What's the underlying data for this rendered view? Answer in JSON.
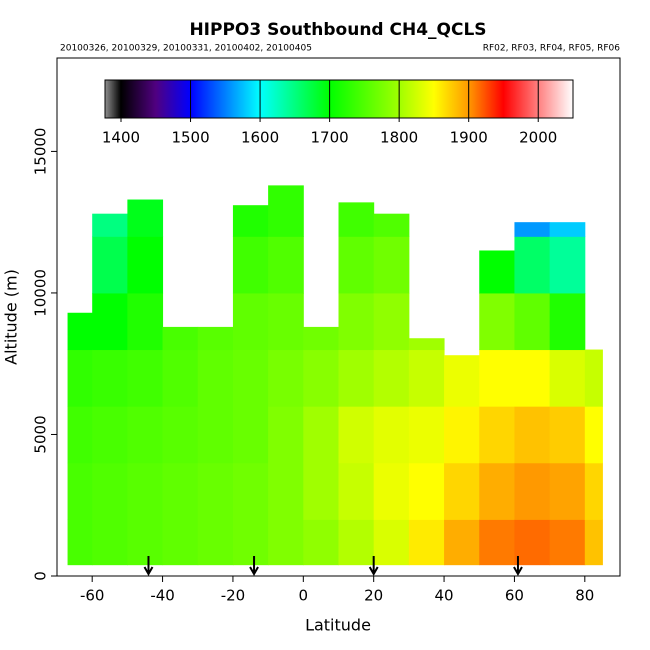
{
  "chart_data": {
    "type": "curtain",
    "title": "HIPPO3 Southbound CH4_QCLS",
    "subtitle_left": "20100326, 20100329, 20100331, 20100402, 20100405",
    "subtitle_right": "RF02, RF03, RF04, RF05, RF06",
    "xlabel": "Latitude",
    "ylabel": "Altitude (m)",
    "xlim": [
      -70,
      90
    ],
    "xticks": [
      -60,
      -40,
      -20,
      0,
      20,
      40,
      60,
      80
    ],
    "ylim": [
      0,
      18300
    ],
    "yticks": [
      0,
      5000,
      10000,
      15000
    ],
    "colorbar_lim": [
      1377,
      2050
    ],
    "colorbar_ticks": [
      1400,
      1500,
      1600,
      1700,
      1800,
      1900,
      2000
    ],
    "colorscale": [
      [
        1377,
        "#909090"
      ],
      [
        1400,
        "#000000"
      ],
      [
        1450,
        "#500080"
      ],
      [
        1500,
        "#0000ff"
      ],
      [
        1600,
        "#00ffff"
      ],
      [
        1700,
        "#00ff00"
      ],
      [
        1800,
        "#a0ff00"
      ],
      [
        1850,
        "#ffff00"
      ],
      [
        1900,
        "#ff9900"
      ],
      [
        1950,
        "#ff0000"
      ],
      [
        2050,
        "#ffffff"
      ]
    ],
    "arrows_lat": [
      -44,
      -14,
      20,
      61
    ],
    "layers": [
      400,
      2000,
      4000,
      6000,
      8000,
      10000,
      12000,
      14000
    ],
    "columns": [
      {
        "lat": [
          -67,
          -60
        ],
        "top": 9300,
        "values": [
          1745,
          1745,
          1740,
          1730,
          1700,
          null,
          null
        ]
      },
      {
        "lat": [
          -60,
          -50
        ],
        "top": 12800,
        "values": [
          1750,
          1750,
          1745,
          1735,
          1700,
          1670,
          1650
        ]
      },
      {
        "lat": [
          -50,
          -40
        ],
        "top": 13300,
        "values": [
          1755,
          1755,
          1750,
          1740,
          1720,
          1700,
          1690
        ]
      },
      {
        "lat": [
          -40,
          -30
        ],
        "top": 8800,
        "values": [
          1760,
          1760,
          1755,
          1750,
          1745,
          null,
          null
        ]
      },
      {
        "lat": [
          -30,
          -20
        ],
        "top": 8800,
        "values": [
          1765,
          1765,
          1760,
          1760,
          1755,
          null,
          null
        ]
      },
      {
        "lat": [
          -20,
          -10
        ],
        "top": 13100,
        "values": [
          1770,
          1770,
          1765,
          1765,
          1760,
          1740,
          1720
        ]
      },
      {
        "lat": [
          -10,
          0
        ],
        "top": 13800,
        "values": [
          1780,
          1780,
          1780,
          1775,
          1765,
          1750,
          1730
        ]
      },
      {
        "lat": [
          0,
          10
        ],
        "top": 8800,
        "values": [
          1790,
          1800,
          1800,
          1785,
          1770,
          null,
          null
        ]
      },
      {
        "lat": [
          10,
          20
        ],
        "top": 13200,
        "values": [
          1810,
          1820,
          1825,
          1800,
          1780,
          1760,
          1740
        ]
      },
      {
        "lat": [
          20,
          30
        ],
        "top": 12800,
        "values": [
          1830,
          1840,
          1835,
          1810,
          1790,
          1770,
          1750
        ]
      },
      {
        "lat": [
          30,
          40
        ],
        "top": 8400,
        "values": [
          1860,
          1850,
          1840,
          1820,
          1800,
          null,
          null
        ]
      },
      {
        "lat": [
          40,
          50
        ],
        "top": 7800,
        "values": [
          1890,
          1870,
          1855,
          1840,
          null,
          null,
          null
        ]
      },
      {
        "lat": [
          50,
          60
        ],
        "top": 11500,
        "values": [
          1910,
          1890,
          1870,
          1850,
          1780,
          1700,
          null
        ]
      },
      {
        "lat": [
          60,
          70
        ],
        "top": 12500,
        "values": [
          1915,
          1900,
          1880,
          1850,
          1760,
          1660,
          1560
        ]
      },
      {
        "lat": [
          70,
          80
        ],
        "top": 12500,
        "values": [
          1910,
          1895,
          1875,
          1830,
          1720,
          1640,
          1580
        ]
      },
      {
        "lat": [
          80,
          85
        ],
        "top": 8000,
        "values": [
          1880,
          1870,
          1850,
          1820,
          null,
          null,
          null
        ]
      }
    ]
  }
}
